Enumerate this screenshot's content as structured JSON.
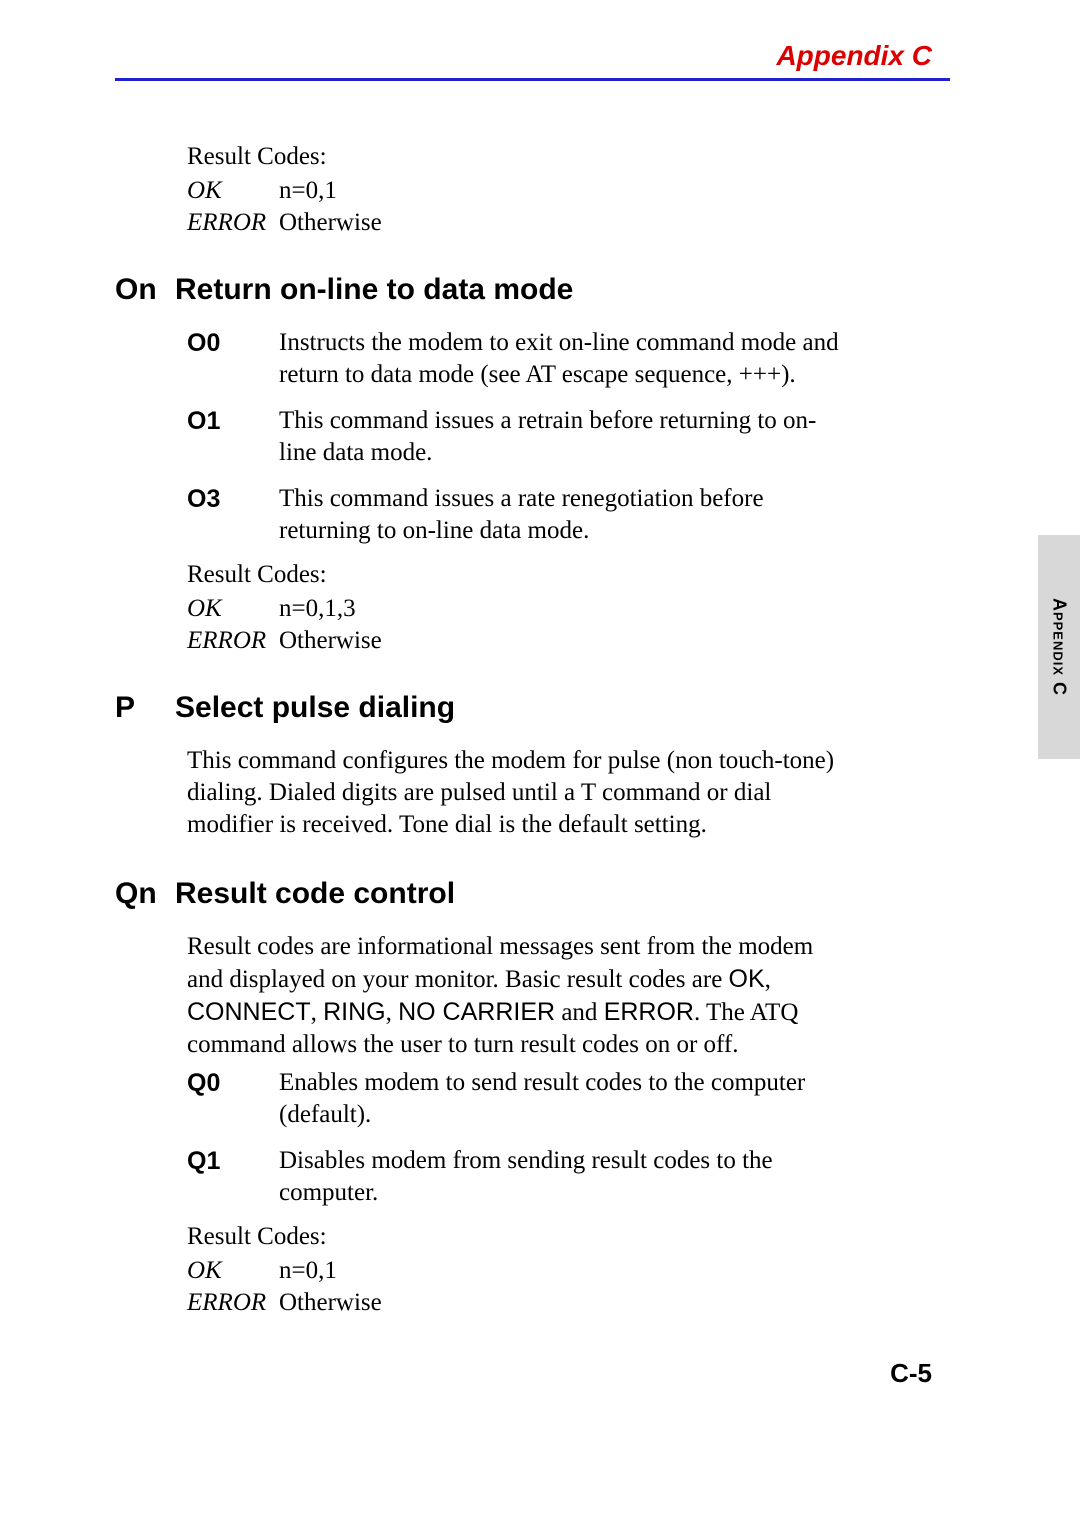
{
  "header": {
    "title": "Appendix C"
  },
  "side_tab": "Appendix C",
  "page_number": "C-5",
  "top_block": {
    "result_codes_label": "Result Codes:",
    "ok_label": "OK",
    "ok_value": "n=0,1",
    "error_label": "ERROR",
    "error_value": "Otherwise"
  },
  "section_on": {
    "cmd": "On",
    "name": "Return on-line to data mode",
    "defs": [
      {
        "term": "O0",
        "desc": "Instructs the modem to exit on-line command mode and return to data mode (see AT escape sequence, +++)."
      },
      {
        "term": "O1",
        "desc": "This command issues a retrain before returning to on-line data mode."
      },
      {
        "term": "O3",
        "desc": "This command issues a rate renegotiation before returning to on-line data mode."
      }
    ],
    "result_codes_label": "Result Codes:",
    "ok_label": "OK",
    "ok_value": "n=0,1,3",
    "error_label": "ERROR",
    "error_value": "Otherwise"
  },
  "section_p": {
    "cmd": "P",
    "name": "Select pulse dialing",
    "para": "This command configures the modem for pulse (non touch-tone) dialing. Dialed digits are pulsed until a T command or dial modifier is received. Tone dial is the default setting."
  },
  "section_qn": {
    "cmd": "Qn",
    "name": "Result code control",
    "para_pre": "Result codes are informational messages sent from the modem and displayed on your monitor. Basic result codes are ",
    "codes_a": "OK",
    "codes_b": "CONNECT",
    "codes_c": "RING",
    "codes_d": "NO CARRIER",
    "codes_e": "ERROR",
    "para_mid1": ", ",
    "para_mid2": ", ",
    "para_mid3": ", ",
    "para_mid4": " and ",
    "para_post": ". The ATQ command allows the user to turn result codes on or off.",
    "defs": [
      {
        "term": "Q0",
        "desc": "Enables modem to send result codes to the computer (default)."
      },
      {
        "term": "Q1",
        "desc": "Disables modem from sending result codes to the computer."
      }
    ],
    "result_codes_label": "Result Codes:",
    "ok_label": "OK",
    "ok_value": "n=0,1",
    "error_label": "ERROR",
    "error_value": "Otherwise"
  }
}
